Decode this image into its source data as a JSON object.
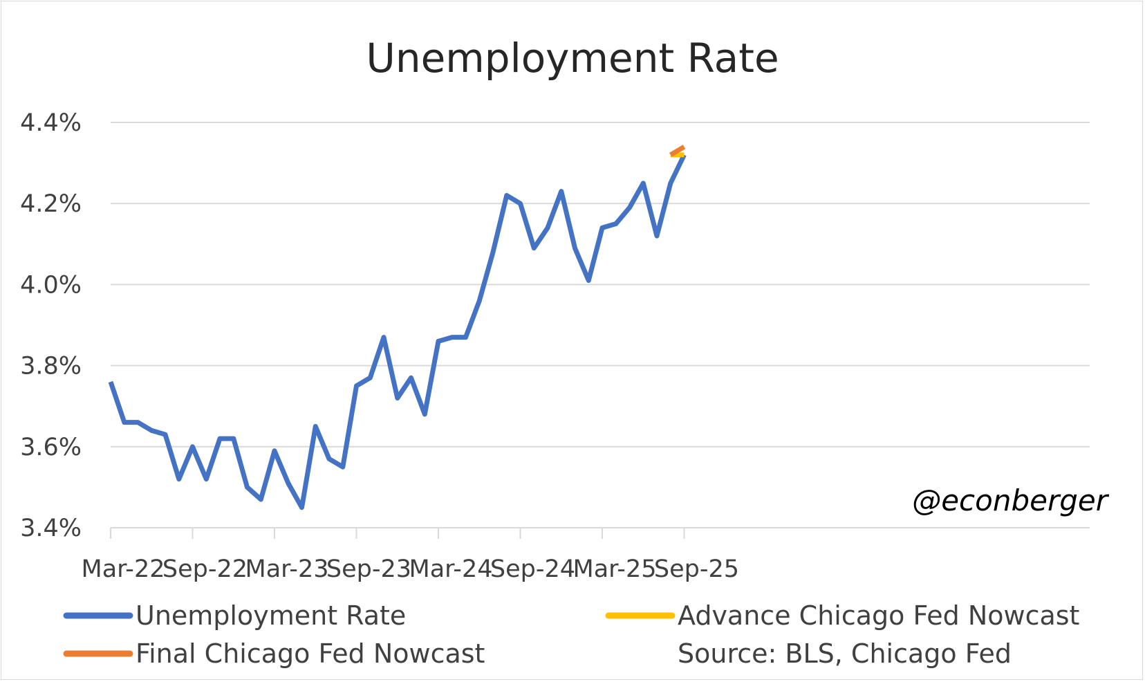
{
  "chart_data": {
    "type": "line",
    "title": "Unemployment Rate",
    "xlabel": "",
    "ylabel": "",
    "ylim": [
      3.4,
      4.4
    ],
    "y_tick_values": [
      3.4,
      3.6,
      3.8,
      4.0,
      4.2,
      4.4
    ],
    "y_tick_labels": [
      "3.4%",
      "3.6%",
      "3.8%",
      "4.0%",
      "4.2%",
      "4.4%"
    ],
    "x_tick_labels": [
      "Mar-22",
      "Sep-22",
      "Mar-23",
      "Sep-23",
      "Mar-24",
      "Sep-24",
      "Mar-25",
      "Sep-25"
    ],
    "grid": true,
    "legend_position": "bottom",
    "x": [
      "Mar-22",
      "Apr-22",
      "May-22",
      "Jun-22",
      "Jul-22",
      "Aug-22",
      "Sep-22",
      "Oct-22",
      "Nov-22",
      "Dec-22",
      "Jan-23",
      "Feb-23",
      "Mar-23",
      "Apr-23",
      "May-23",
      "Jun-23",
      "Jul-23",
      "Aug-23",
      "Sep-23",
      "Oct-23",
      "Nov-23",
      "Dec-23",
      "Jan-24",
      "Feb-24",
      "Mar-24",
      "Apr-24",
      "May-24",
      "Jun-24",
      "Jul-24",
      "Aug-24",
      "Sep-24",
      "Oct-24",
      "Nov-24",
      "Dec-24",
      "Jan-25",
      "Feb-25",
      "Mar-25",
      "Apr-25",
      "May-25",
      "Jun-25",
      "Jul-25",
      "Aug-25",
      "Sep-25"
    ],
    "series": [
      {
        "name": "Unemployment Rate",
        "color": "#4472c4",
        "values": [
          3.76,
          3.66,
          3.66,
          3.64,
          3.63,
          3.52,
          3.6,
          3.52,
          3.62,
          3.62,
          3.5,
          3.47,
          3.59,
          3.51,
          3.45,
          3.65,
          3.57,
          3.55,
          3.75,
          3.77,
          3.87,
          3.72,
          3.77,
          3.68,
          3.86,
          3.87,
          3.87,
          3.96,
          4.08,
          4.22,
          4.2,
          4.09,
          4.14,
          4.23,
          4.09,
          4.01,
          4.14,
          4.15,
          4.19,
          4.25,
          4.12,
          4.25,
          4.32
        ]
      },
      {
        "name": "Advance Chicago Fed Nowcast",
        "color": "#ffc000",
        "x": [
          "Aug-25",
          "Sep-25"
        ],
        "values": [
          4.32,
          4.32
        ]
      },
      {
        "name": "Final Chicago Fed Nowcast",
        "color": "#ed7d31",
        "x": [
          "Aug-25",
          "Sep-25"
        ],
        "values": [
          4.32,
          4.34
        ]
      }
    ],
    "annotations": [
      "@econberger"
    ],
    "source": "Source: BLS, Chicago Fed"
  }
}
